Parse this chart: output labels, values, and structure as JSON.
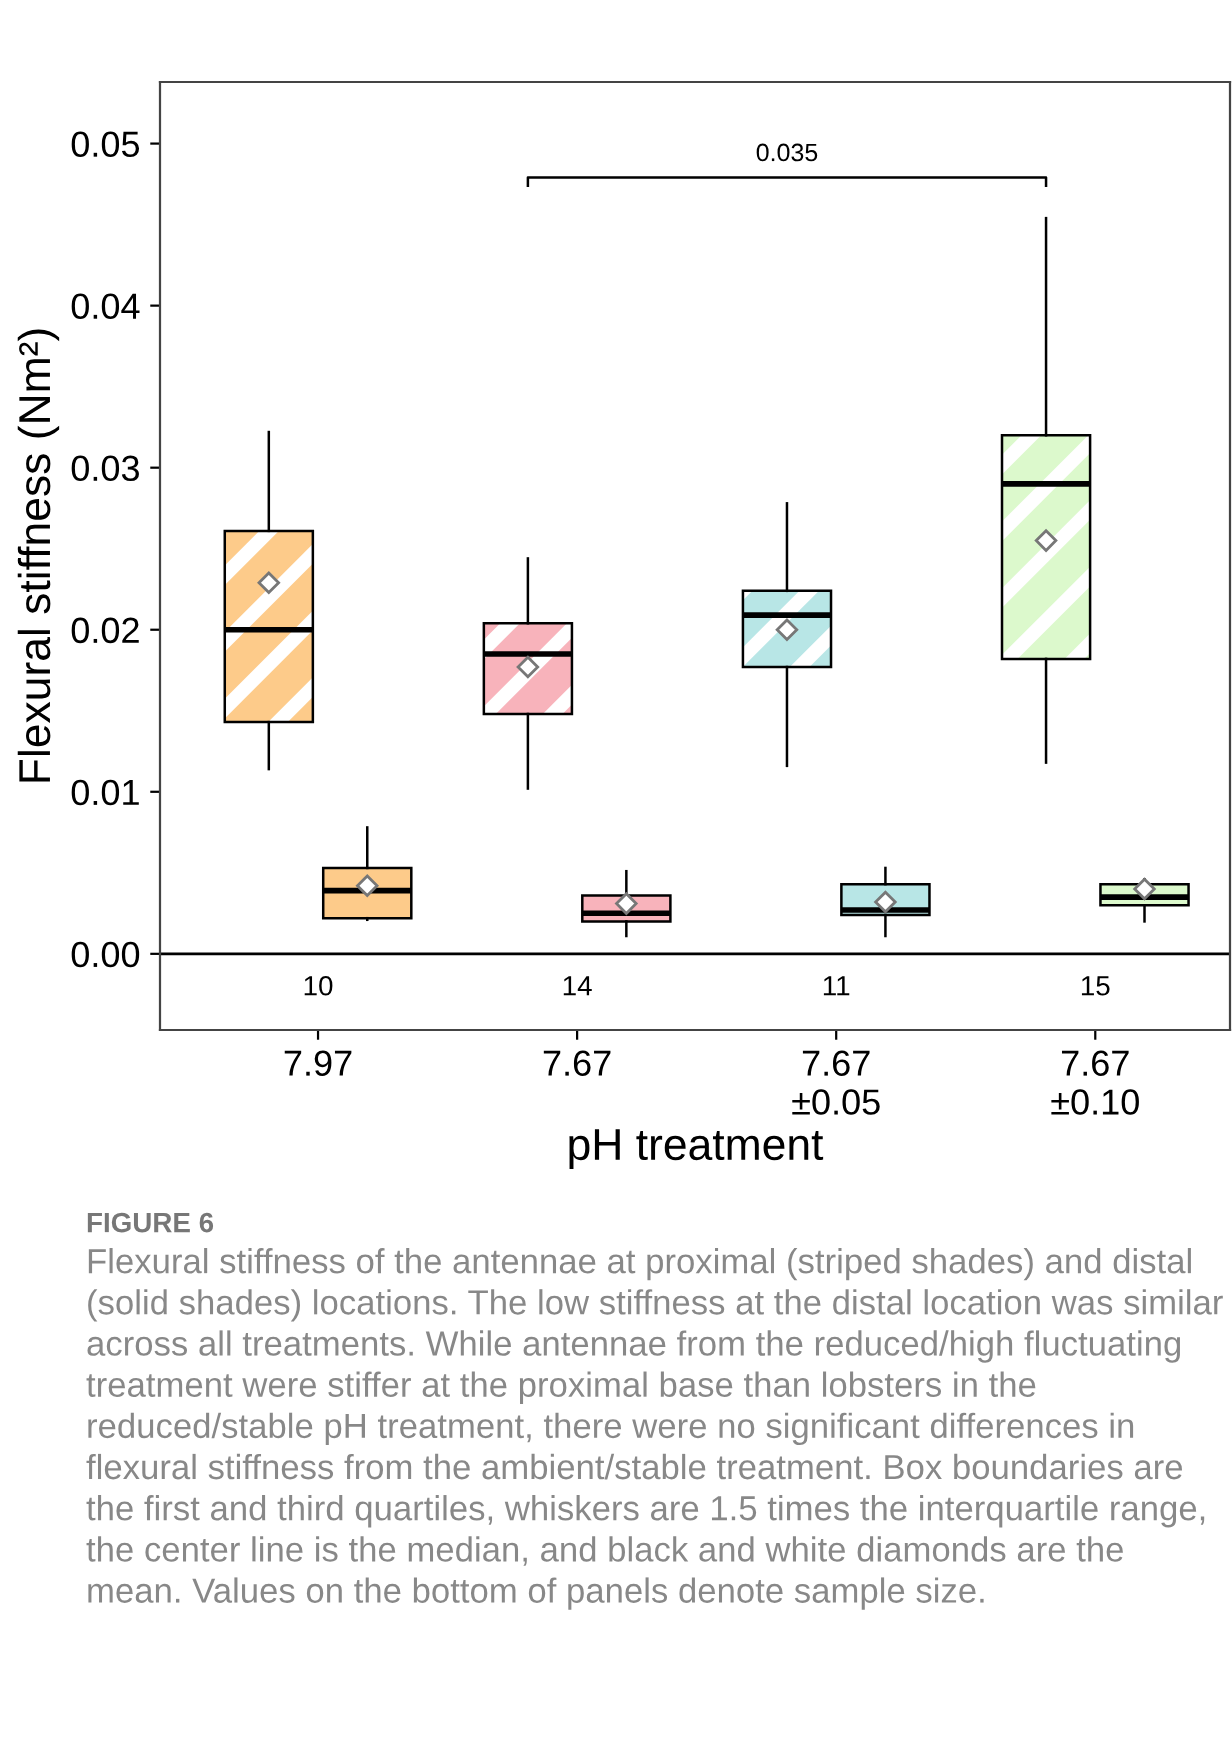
{
  "chart_data": {
    "type": "box",
    "ylabel": "Flexural stiffness (Nm²)",
    "xlabel": "pH treatment",
    "categories": [
      "7.97",
      "7.67",
      "7.67\n±0.05",
      "7.67\n±0.10"
    ],
    "series": [
      {
        "colors": [
          "#fdcb8a",
          "#f8b3bb",
          "#b8e6e6",
          "#dcf9cc"
        ],
        "boxes": [
          {
            "low": 0.0114,
            "q1": 0.0143,
            "median": 0.02,
            "q3": 0.0261,
            "high": 0.0322,
            "mean": 0.0229
          },
          {
            "low": 0.0102,
            "q1": 0.0148,
            "median": 0.0185,
            "q3": 0.0204,
            "high": 0.0244,
            "mean": 0.0177
          },
          {
            "low": 0.0116,
            "q1": 0.0177,
            "median": 0.0209,
            "q3": 0.0224,
            "high": 0.0278,
            "mean": 0.02
          },
          {
            "low": 0.0118,
            "q1": 0.0182,
            "median": 0.029,
            "q3": 0.032,
            "high": 0.0454,
            "mean": 0.0255
          }
        ]
      },
      {
        "colors": [
          "#fdcb8a",
          "#f8b3bb",
          "#b8e6e6",
          "#dcf9cc"
        ],
        "boxes": [
          {
            "low": 0.0021,
            "q1": 0.0022,
            "median": 0.0039,
            "q3": 0.0053,
            "high": 0.0078,
            "mean": 0.0042
          },
          {
            "low": 0.0011,
            "q1": 0.002,
            "median": 0.0025,
            "q3": 0.0036,
            "high": 0.0051,
            "mean": 0.0031
          },
          {
            "low": 0.0011,
            "q1": 0.0024,
            "median": 0.0027,
            "q3": 0.0043,
            "high": 0.0053,
            "mean": 0.0032
          },
          {
            "low": 0.002,
            "q1": 0.003,
            "median": 0.0035,
            "q3": 0.0043,
            "high": 0.0046,
            "mean": 0.004
          }
        ]
      }
    ],
    "ylim": [
      -0.0047,
      0.0538
    ],
    "yticks": [
      {
        "value": 0,
        "label": "0.00"
      },
      {
        "value": 0.01,
        "label": "0.01"
      },
      {
        "value": 0.02,
        "label": "0.02"
      },
      {
        "value": 0.03,
        "label": "0.03"
      },
      {
        "value": 0.04,
        "label": "0.04"
      },
      {
        "value": 0.05,
        "label": "0.05"
      }
    ],
    "ref_lines": [
      {
        "axis": "y",
        "value": 0,
        "color": "#000000"
      }
    ],
    "grid": false,
    "annotations": [
      "10",
      "14",
      "11",
      "15",
      "0.035",
      "FIGURE 6",
      "Flexural stiffness of the antennae at proximal (striped shades) and distal (solid shades) locations. The low stiffness at the distal location was similar across all treatments. While antennae from the reduced/high fluctuating treatment were stiffer at the proximal base than lobsters in the reduced/stable pH treatment, there were no significant differences in flexural stiffness from the ambient/stable treatment. Box boundaries are the first and third quartiles, whiskers are 1.5 times the interquartile range, the center line is the median, and black and white diamonds are the mean. Values on the bottom of panels denote sample size."
    ]
  }
}
